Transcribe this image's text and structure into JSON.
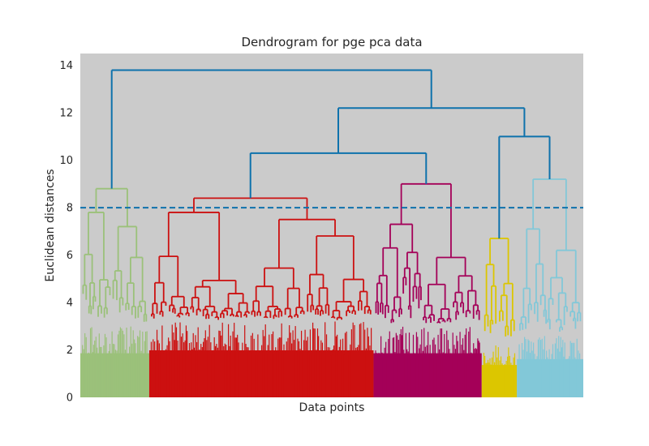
{
  "chart_data": {
    "type": "dendrogram",
    "title": "Dendrogram for pge pca data",
    "xlabel": "Data points",
    "ylabel": "Euclidean distances",
    "ylim": [
      0,
      14.5
    ],
    "yticks": [
      0,
      2,
      4,
      6,
      8,
      10,
      12,
      14
    ],
    "grid": false,
    "plot_background": "#cbcbcb",
    "threshold": {
      "value": 8,
      "color": "#0e72ac",
      "style": "dashed"
    },
    "above_threshold_color": "#0e72ac",
    "clusters": [
      {
        "color": "#9bc17a",
        "extent": [
          0.0,
          0.137
        ],
        "top_height": 8.8,
        "bush_height": 3.0,
        "sub_merges": [
          7.8,
          7.2,
          5.1
        ]
      },
      {
        "color": "#cc1010",
        "extent": [
          0.137,
          0.583
        ],
        "top_height": 8.4,
        "bush_height": 3.2,
        "sub_merges": [
          7.8,
          7.5,
          6.8,
          6.6,
          6.2,
          5.6
        ]
      },
      {
        "color": "#a40058",
        "extent": [
          0.583,
          0.798
        ],
        "top_height": 9.0,
        "bush_height": 3.0,
        "sub_merges": [
          7.3,
          5.9,
          5.6,
          4.8
        ]
      },
      {
        "color": "#dcc600",
        "extent": [
          0.798,
          0.868
        ],
        "top_height": 6.7,
        "bush_height": 2.2,
        "sub_merges": [
          5.6,
          4.8,
          4.2
        ]
      },
      {
        "color": "#82c8d8",
        "extent": [
          0.868,
          1.0
        ],
        "top_height": 9.2,
        "bush_height": 2.6,
        "sub_merges": [
          7.1,
          6.2,
          3.7
        ]
      }
    ],
    "links": [
      {
        "from": [
          "c1",
          "c2"
        ],
        "height": 10.3
      },
      {
        "from": [
          "c4",
          "c5"
        ],
        "height": 11.0
      },
      {
        "from": [
          "c1c2c3",
          "c4c5"
        ],
        "height": 12.2
      },
      {
        "from": [
          "c0",
          "rest"
        ],
        "height": 13.8
      }
    ]
  }
}
